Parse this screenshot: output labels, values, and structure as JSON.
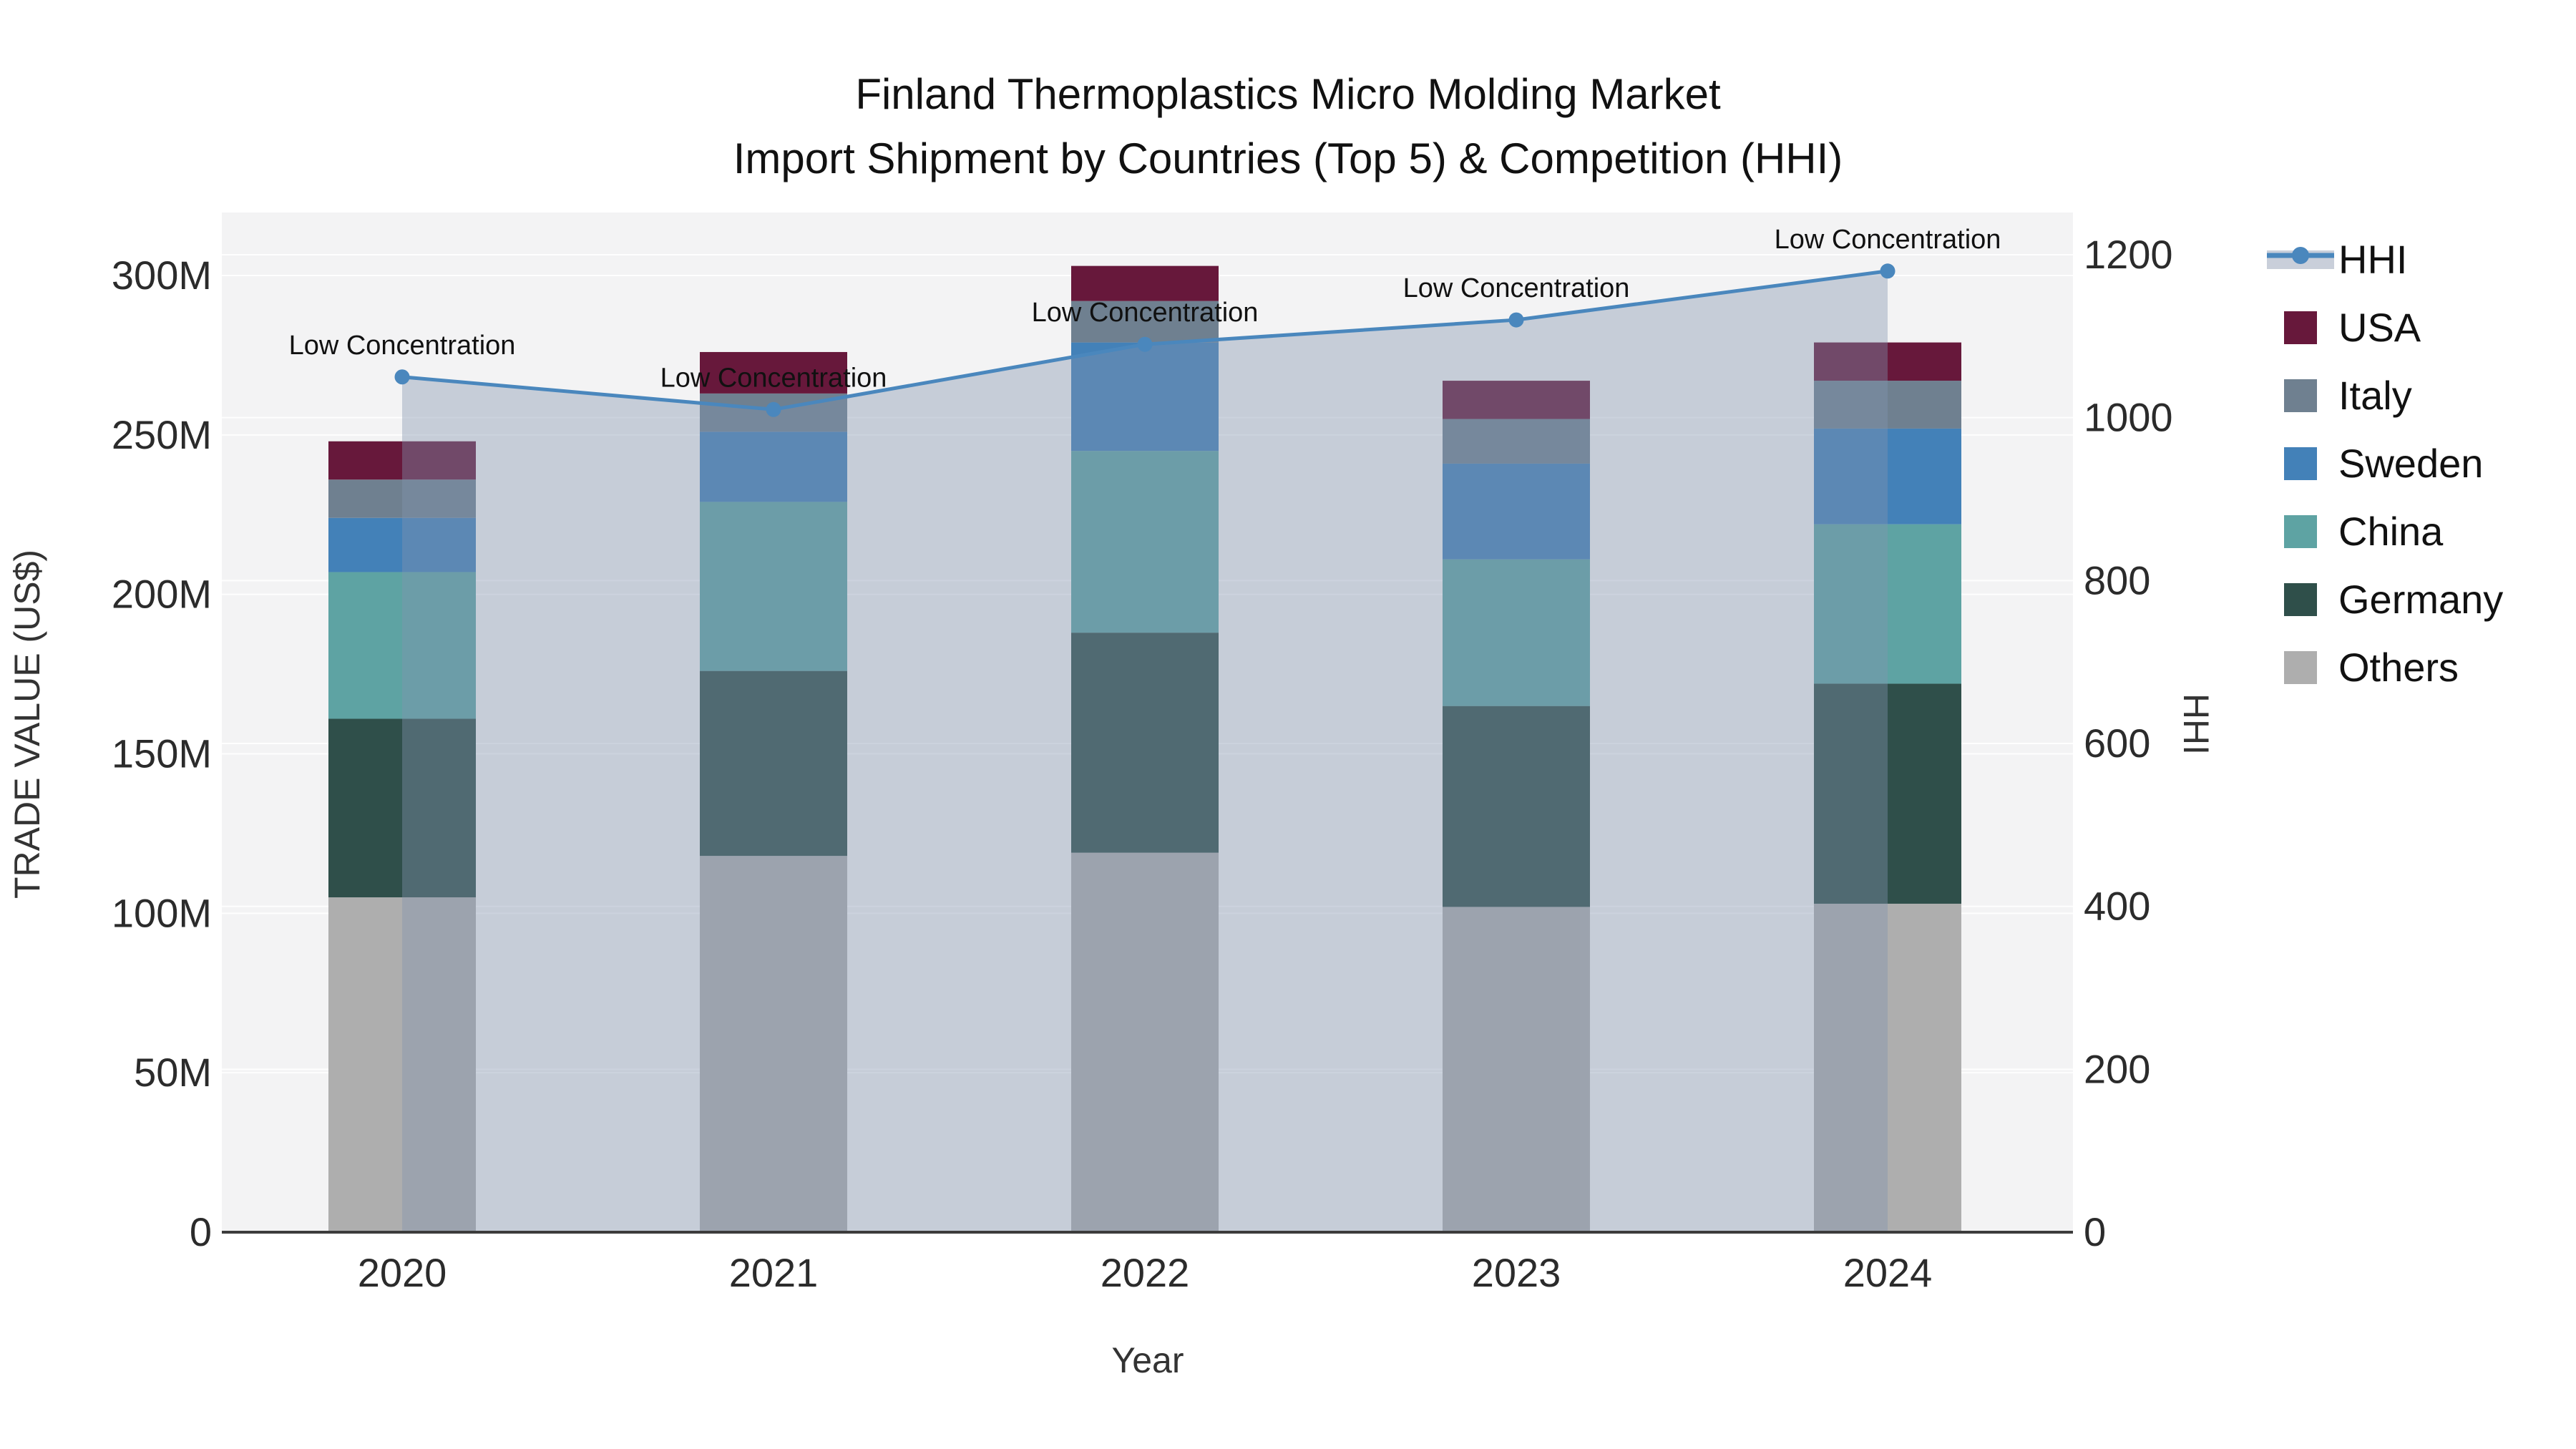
{
  "title": {
    "line1": "Finland Thermoplastics Micro Molding Market",
    "line2": "Import Shipment by Countries (Top 5) & Competition (HHI)"
  },
  "axes": {
    "x": {
      "title": "Year",
      "categories": [
        "2020",
        "2021",
        "2022",
        "2023",
        "2024"
      ]
    },
    "y_left": {
      "title": "TRADE VALUE (US$)",
      "tick_labels": [
        "0",
        "50M",
        "100M",
        "150M",
        "200M",
        "250M",
        "300M"
      ],
      "tick_values_millions": [
        0,
        50,
        100,
        150,
        200,
        250,
        300
      ]
    },
    "y_right": {
      "title": "HHI",
      "tick_labels": [
        "0",
        "200",
        "400",
        "600",
        "800",
        "1000",
        "1200"
      ],
      "tick_values": [
        0,
        200,
        400,
        600,
        800,
        1000,
        1200
      ]
    }
  },
  "legend": [
    {
      "label": "HHI",
      "type": "line",
      "color": "#4A87BD",
      "band_color": "#C9CFDA"
    },
    {
      "label": "USA",
      "type": "swatch",
      "color": "#67183B"
    },
    {
      "label": "Italy",
      "type": "swatch",
      "color": "#6F8090"
    },
    {
      "label": "Sweden",
      "type": "swatch",
      "color": "#4381B8"
    },
    {
      "label": "China",
      "type": "swatch",
      "color": "#5EA3A3"
    },
    {
      "label": "Germany",
      "type": "swatch",
      "color": "#2F4F4A"
    },
    {
      "label": "Others",
      "type": "swatch",
      "color": "#AEAEAE"
    }
  ],
  "chart_data": {
    "type": "bar+line",
    "title": "Finland Thermoplastics Micro Molding Market — Import Shipment by Countries (Top 5) & Competition (HHI)",
    "xlabel": "Year",
    "ylabel_left": "TRADE VALUE (US$)",
    "ylabel_right": "HHI",
    "categories": [
      "2020",
      "2021",
      "2022",
      "2023",
      "2024"
    ],
    "stacked_bar_unit": "millions USD",
    "series": [
      {
        "name": "Others",
        "color": "#AEAEAE",
        "values": [
          105,
          118,
          119,
          102,
          103
        ]
      },
      {
        "name": "Germany",
        "color": "#2F4F4A",
        "values": [
          56,
          58,
          69,
          63,
          69
        ]
      },
      {
        "name": "China",
        "color": "#5EA3A3",
        "values": [
          46,
          53,
          57,
          46,
          50
        ]
      },
      {
        "name": "Sweden",
        "color": "#4381B8",
        "values": [
          17,
          22,
          34,
          30,
          30
        ]
      },
      {
        "name": "Italy",
        "color": "#6F8090",
        "values": [
          12,
          12,
          13,
          14,
          15
        ]
      },
      {
        "name": "USA",
        "color": "#67183B",
        "values": [
          12,
          13,
          11,
          12,
          12
        ]
      }
    ],
    "bar_totals_millions": [
      248,
      276,
      303,
      267,
      279
    ],
    "hhi_line": {
      "name": "HHI",
      "axis": "right",
      "color": "#4A87BD",
      "area_fill": "rgba(130,147,176,0.40)",
      "values": [
        1050,
        1010,
        1090,
        1120,
        1180
      ]
    },
    "annotations": [
      "Low Concentration",
      "Low Concentration",
      "Low Concentration",
      "Low Concentration",
      "Low Concentration"
    ],
    "ylim_left_millions": [
      0,
      320
    ],
    "ylim_right": [
      0,
      1253
    ],
    "grid": true,
    "legend_position": "right",
    "plot_bg": "#F3F3F4",
    "grid_color": "#FFFFFF",
    "axis_line_color": "#3C3C3C"
  }
}
